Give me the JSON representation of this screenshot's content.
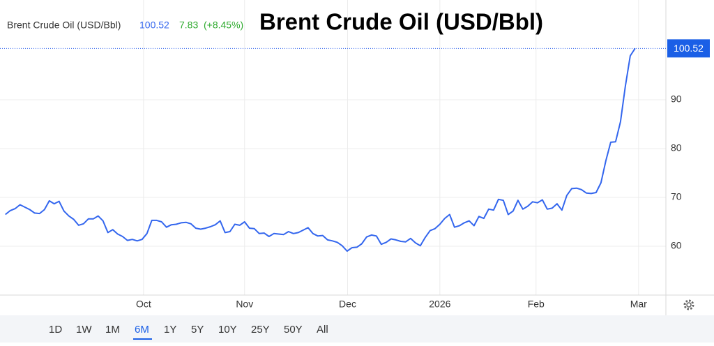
{
  "chart_data": {
    "type": "line",
    "title": "Brent Crude Oil (USD/Bbl)",
    "header": {
      "name": "Brent Crude Oil (USD/Bbl)",
      "price": 100.52,
      "change": 7.83,
      "change_pct": "(+8.45%)"
    },
    "series": [
      {
        "name": "Brent Crude Oil (USD/Bbl)",
        "color": "#3366ee",
        "values": [
          66.5,
          67.3,
          67.7,
          68.5,
          68,
          67.5,
          66.8,
          66.7,
          67.5,
          69.3,
          68.7,
          69.2,
          67.2,
          66.2,
          65.5,
          64.3,
          64.6,
          65.6,
          65.6,
          66.2,
          65.2,
          62.8,
          63.4,
          62.5,
          62,
          61.2,
          61.4,
          61.1,
          61.4,
          62.6,
          65.3,
          65.3,
          65,
          63.9,
          64.4,
          64.5,
          64.8,
          64.9,
          64.6,
          63.7,
          63.5,
          63.7,
          64,
          64.4,
          65.2,
          62.8,
          63,
          64.5,
          64.3,
          65,
          63.7,
          63.6,
          62.6,
          62.7,
          62,
          62.6,
          62.5,
          62.4,
          63,
          62.6,
          62.8,
          63.3,
          63.8,
          62.6,
          62.1,
          62.2,
          61.3,
          61.1,
          60.8,
          60.1,
          59,
          59.7,
          59.8,
          60.5,
          61.9,
          62.3,
          62.1,
          60.4,
          60.8,
          61.5,
          61.3,
          61,
          60.9,
          61.6,
          60.7,
          60.1,
          61.8,
          63.2,
          63.6,
          64.5,
          65.7,
          66.5,
          63.9,
          64.2,
          64.8,
          65.2,
          64.2,
          66.1,
          65.7,
          67.6,
          67.4,
          69.6,
          69.4,
          66.5,
          67.2,
          69.4,
          67.6,
          68.2,
          69.1,
          68.9,
          69.5,
          67.6,
          67.8,
          68.7,
          67.4,
          70.4,
          71.8,
          71.9,
          71.6,
          70.9,
          70.8,
          71,
          73,
          77.5,
          81.3,
          81.4,
          85.5,
          92.8,
          99,
          100.52
        ]
      }
    ],
    "xlim": [
      -1.1,
      135.3
    ],
    "xticks": [
      {
        "value": 28.3,
        "label": "Oct"
      },
      {
        "value": 49,
        "label": "Nov"
      },
      {
        "value": 70.1,
        "label": "Dec"
      },
      {
        "value": 89,
        "label": "2026"
      },
      {
        "value": 108.7,
        "label": "Feb"
      },
      {
        "value": 129.7,
        "label": "Mar"
      }
    ],
    "ylim": [
      50,
      110
    ],
    "yticks": [
      60,
      70,
      80,
      90
    ],
    "grid": true,
    "ranges": [
      "1D",
      "1W",
      "1M",
      "6M",
      "1Y",
      "5Y",
      "10Y",
      "25Y",
      "50Y",
      "All"
    ],
    "selected_range": "6M"
  }
}
